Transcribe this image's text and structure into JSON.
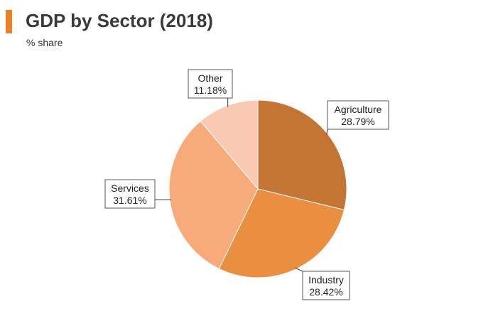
{
  "header": {
    "title": "GDP by Sector (2018)",
    "subtitle": "% share",
    "accent_color": "#f07f24"
  },
  "chart_data": {
    "type": "pie",
    "title": "GDP by Sector (2018)",
    "subtitle": "% share",
    "start_angle_deg": 0,
    "direction": "clockwise",
    "slices": [
      {
        "name": "Agriculture",
        "value": 28.79,
        "label": "28.79%",
        "color": "#c47433"
      },
      {
        "name": "Industry",
        "value": 28.42,
        "label": "28.42%",
        "color": "#ea8e40"
      },
      {
        "name": "Services",
        "value": 31.61,
        "label": "31.61%",
        "color": "#f7ab7a"
      },
      {
        "name": "Other",
        "value": 11.18,
        "label": "11.18%",
        "color": "#f9cab1"
      }
    ]
  }
}
